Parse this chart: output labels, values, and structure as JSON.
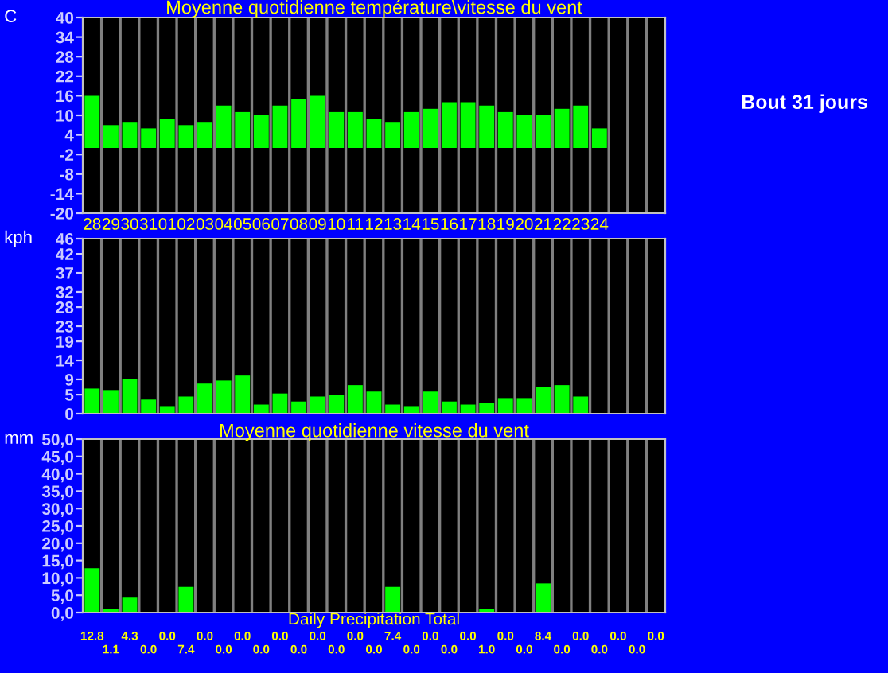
{
  "chart_data": [
    {
      "type": "bar",
      "title": "Moyenne quotidienne température\\vitesse du vent",
      "ylabel": "C",
      "categories": [
        "28",
        "29",
        "30",
        "31",
        "01",
        "02",
        "03",
        "04",
        "05",
        "06",
        "07",
        "08",
        "09",
        "10",
        "11",
        "12",
        "13",
        "14",
        "15",
        "16",
        "17",
        "18",
        "19",
        "20",
        "21",
        "22",
        "23",
        "24",
        null,
        null,
        null
      ],
      "series": [
        {
          "color": "#00ff00",
          "values": [
            16,
            7,
            8,
            6,
            9,
            7,
            8,
            13,
            11,
            10,
            13,
            15,
            16,
            11,
            11,
            9,
            8,
            11,
            12,
            14,
            14,
            13,
            11,
            10,
            10,
            12,
            13,
            6,
            null,
            null,
            null
          ]
        }
      ],
      "ylim": [
        -20,
        40
      ],
      "yticks": [
        -20,
        -14,
        -8,
        -2,
        4,
        10,
        16,
        22,
        28,
        34,
        40
      ],
      "grid": "x",
      "legend": false,
      "annotations": [
        "Bout 31 jours"
      ]
    },
    {
      "type": "bar",
      "ylabel": "kph",
      "categories": [
        "28",
        "29",
        "30",
        "31",
        "01",
        "02",
        "03",
        "04",
        "05",
        "06",
        "07",
        "08",
        "09",
        "10",
        "11",
        "12",
        "13",
        "14",
        "15",
        "16",
        "17",
        "18",
        "19",
        "20",
        "21",
        "22",
        "23",
        "24",
        null,
        null,
        null
      ],
      "series": [
        {
          "color": "#00ff00",
          "values": [
            6.6,
            6.2,
            9.1,
            3.7,
            2.0,
            4.5,
            7.9,
            8.7,
            10.0,
            2.4,
            5.3,
            3.2,
            4.5,
            4.9,
            7.5,
            5.8,
            2.4,
            2.0,
            5.8,
            3.2,
            2.4,
            2.8,
            4.1,
            4.1,
            7.0,
            7.5,
            4.5,
            null,
            null,
            null,
            null
          ]
        }
      ],
      "ylim": [
        0,
        46
      ],
      "yticks": [
        0,
        5,
        9,
        14,
        19,
        23,
        28,
        32,
        37,
        42,
        46
      ],
      "grid": "x",
      "legend": false,
      "tick_labels": "y"
    },
    {
      "type": "bar",
      "title": "Moyenne quotidienne vitesse du vent",
      "xlabel": "Daily Precipitation Total",
      "ylabel": "mm",
      "categories": [
        "28",
        "29",
        "30",
        "31",
        "01",
        "02",
        "03",
        "04",
        "05",
        "06",
        "07",
        "08",
        "09",
        "10",
        "11",
        "12",
        "13",
        "14",
        "15",
        "16",
        "17",
        "18",
        "19",
        "20",
        "21",
        "22",
        "23",
        "24",
        null,
        null,
        null
      ],
      "series": [
        {
          "color": "#00ff00",
          "values": [
            12.8,
            1.1,
            4.3,
            0.0,
            0.0,
            7.4,
            0.0,
            0.0,
            0.0,
            0.0,
            0.0,
            0.0,
            0.0,
            0.0,
            0.0,
            0.0,
            7.4,
            0.0,
            0.0,
            0.0,
            0.0,
            1.0,
            0.0,
            0.0,
            8.4,
            0.0,
            0.0,
            0.0,
            0.0,
            0.0,
            0.0
          ],
          "value_labels": [
            "12.8",
            "1.1",
            "4.3",
            "0.0",
            "0.0",
            "7.4",
            "0.0",
            "0.0",
            "0.0",
            "0.0",
            "0.0",
            "0.0",
            "0.0",
            "0.0",
            "0.0",
            "0.0",
            "7.4",
            "0.0",
            "0.0",
            "0.0",
            "0.0",
            "1.0",
            "0.0",
            "0.0",
            "8.4",
            "0.0",
            "0.0",
            "0.0",
            "0.0",
            "0.0",
            "0.0"
          ]
        }
      ],
      "ylim": [
        0,
        50
      ],
      "yticks": [
        {
          "value": 0,
          "label": "0,0"
        },
        {
          "value": 5,
          "label": "5,0"
        },
        {
          "value": 10,
          "label": "10,0"
        },
        {
          "value": 15,
          "label": "15,0"
        },
        {
          "value": 20,
          "label": "20,0"
        },
        {
          "value": 25,
          "label": "25,0"
        },
        {
          "value": 30,
          "label": "30,0"
        },
        {
          "value": 35,
          "label": "35,0"
        },
        {
          "value": 40,
          "label": "40,0"
        },
        {
          "value": 45,
          "label": "45,0"
        },
        {
          "value": 50,
          "label": "50,0"
        }
      ],
      "grid": "x",
      "legend": false,
      "tick_labels": "y"
    }
  ]
}
